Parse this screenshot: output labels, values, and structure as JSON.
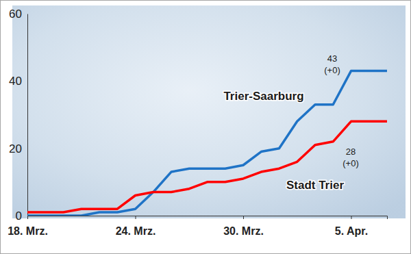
{
  "chart_data": {
    "type": "line",
    "categories": [
      "18. Mrz.",
      null,
      null,
      null,
      null,
      null,
      "24. Mrz.",
      null,
      null,
      null,
      null,
      null,
      "30. Mrz.",
      null,
      null,
      null,
      null,
      null,
      "5. Apr.",
      null,
      null
    ],
    "series": [
      {
        "name": "Trier-Saarburg",
        "color": "#1f73c6",
        "values": [
          0,
          0,
          0,
          0,
          1,
          1,
          2,
          7,
          13,
          14,
          14,
          14,
          15,
          19,
          20,
          28,
          33,
          33,
          43,
          43,
          43
        ],
        "annotation": [
          "43",
          "(+0)"
        ]
      },
      {
        "name": "Stadt Trier",
        "color": "#ff0000",
        "values": [
          1,
          1,
          1,
          2,
          2,
          2,
          6,
          7,
          7,
          8,
          10,
          10,
          11,
          13,
          14,
          16,
          21,
          22,
          28,
          28,
          28
        ],
        "annotation": [
          "28",
          "(+0)"
        ]
      }
    ],
    "ylim": [
      0,
      60
    ],
    "yticks": [
      0,
      20,
      40,
      60
    ],
    "grid": false
  }
}
